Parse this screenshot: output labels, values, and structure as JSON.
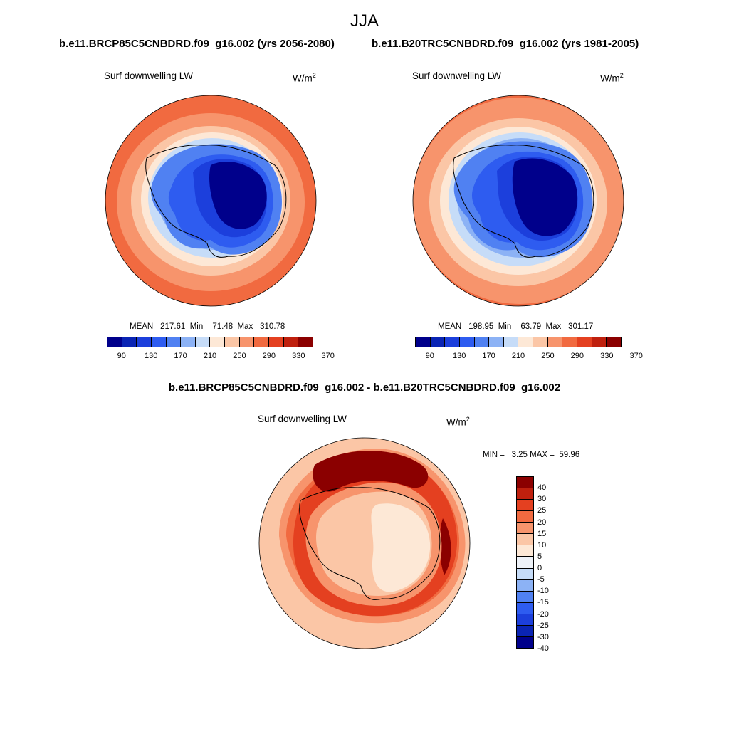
{
  "title": "JJA",
  "colors": {
    "abs_scale": [
      "#00008b",
      "#0a24b4",
      "#1c3fdc",
      "#2e5cf0",
      "#5081f2",
      "#8cb2f5",
      "#c6dcf8",
      "#fde8d6",
      "#fbc6a6",
      "#f7946c",
      "#f16a40",
      "#e44020",
      "#bf200e",
      "#8b0000"
    ],
    "diff_scale": [
      "#00008b",
      "#0a24b4",
      "#1c3fdc",
      "#2e5cf0",
      "#5081f2",
      "#8cb2f5",
      "#c6dcf8",
      "#eef2f8",
      "#fde8d6",
      "#fbc6a6",
      "#f7946c",
      "#f16a40",
      "#e44020",
      "#bf200e",
      "#8b0000"
    ]
  },
  "panels": [
    {
      "title": "b.e11.BRCP85C5CNBDRD.f09_g16.002 (yrs 2056-2080)",
      "variable": "Surf downwelling LW",
      "units_base": "W/m",
      "units_exp": "2",
      "stats": "MEAN= 217.61  Min=  71.48  Max= 310.78",
      "colorbar_ticks": [
        "90",
        "130",
        "170",
        "210",
        "250",
        "290",
        "330",
        "370"
      ]
    },
    {
      "title": "b.e11.B20TRC5CNBDRD.f09_g16.002 (yrs 1981-2005)",
      "variable": "Surf downwelling LW",
      "units_base": "W/m",
      "units_exp": "2",
      "stats": "MEAN= 198.95  Min=  63.79  Max= 301.17",
      "colorbar_ticks": [
        "90",
        "130",
        "170",
        "210",
        "250",
        "290",
        "330",
        "370"
      ]
    }
  ],
  "difference": {
    "title": "b.e11.BRCP85C5CNBDRD.f09_g16.002 - b.e11.B20TRC5CNBDRD.f09_g16.002",
    "variable": "Surf downwelling LW",
    "units_base": "W/m",
    "units_exp": "2",
    "stats": "MIN =   3.25 MAX =  59.96",
    "colorbar_ticks": [
      "40",
      "30",
      "25",
      "20",
      "15",
      "10",
      "5",
      "0",
      "-5",
      "-10",
      "-15",
      "-20",
      "-25",
      "-30",
      "-40"
    ]
  }
}
